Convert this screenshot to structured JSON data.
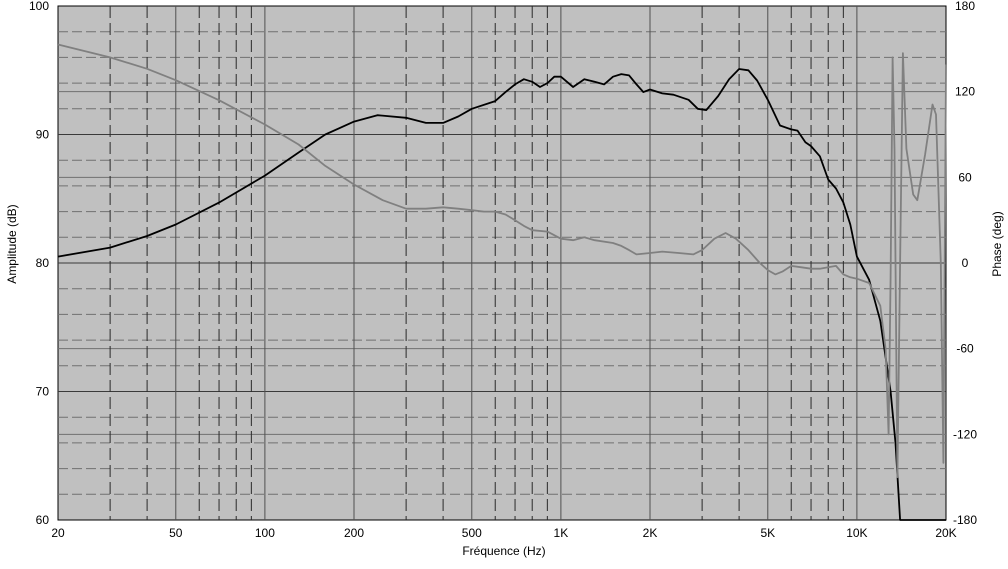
{
  "chart_data": {
    "type": "line",
    "title": "",
    "xlabel": "Fréquence (Hz)",
    "ylabel": "Amplitude (dB)",
    "y2label": "Phase (deg)",
    "x_scale": "log",
    "xlim": [
      20,
      20000
    ],
    "ylim": [
      60,
      100
    ],
    "y2lim": [
      -180,
      180
    ],
    "grid": true,
    "x_ticks": [
      {
        "value": 20,
        "label": "20"
      },
      {
        "value": 50,
        "label": "50"
      },
      {
        "value": 100,
        "label": "100"
      },
      {
        "value": 200,
        "label": "200"
      },
      {
        "value": 500,
        "label": "500"
      },
      {
        "value": 1000,
        "label": "1K"
      },
      {
        "value": 2000,
        "label": "2K"
      },
      {
        "value": 5000,
        "label": "5K"
      },
      {
        "value": 10000,
        "label": "10K"
      },
      {
        "value": 20000,
        "label": "20K"
      }
    ],
    "y_ticks": [
      {
        "value": 60,
        "label": "60"
      },
      {
        "value": 70,
        "label": "70"
      },
      {
        "value": 80,
        "label": "80"
      },
      {
        "value": 90,
        "label": "90"
      },
      {
        "value": 100,
        "label": "100"
      }
    ],
    "y2_ticks": [
      {
        "value": -180,
        "label": "-180"
      },
      {
        "value": -120,
        "label": "-120"
      },
      {
        "value": -60,
        "label": "-60"
      },
      {
        "value": 0,
        "label": "0"
      },
      {
        "value": 60,
        "label": "60"
      },
      {
        "value": 120,
        "label": "120"
      },
      {
        "value": 180,
        "label": "180"
      }
    ],
    "colors": {
      "background": "#c0c0c0",
      "amplitude": "#000000",
      "phase": "#808080"
    },
    "series": [
      {
        "axis": "left",
        "points": [
          [
            20,
            80.5
          ],
          [
            30,
            81.2
          ],
          [
            40,
            82.1
          ],
          [
            50,
            83.0
          ],
          [
            70,
            84.7
          ],
          [
            100,
            86.8
          ],
          [
            130,
            88.6
          ],
          [
            160,
            90.0
          ],
          [
            200,
            91.0
          ],
          [
            240,
            91.5
          ],
          [
            300,
            91.3
          ],
          [
            350,
            90.9
          ],
          [
            400,
            90.9
          ],
          [
            450,
            91.4
          ],
          [
            500,
            92.0
          ],
          [
            600,
            92.6
          ],
          [
            650,
            93.3
          ],
          [
            700,
            93.9
          ],
          [
            750,
            94.3
          ],
          [
            800,
            94.1
          ],
          [
            850,
            93.7
          ],
          [
            900,
            94.0
          ],
          [
            950,
            94.5
          ],
          [
            1000,
            94.5
          ],
          [
            1100,
            93.7
          ],
          [
            1200,
            94.3
          ],
          [
            1300,
            94.1
          ],
          [
            1400,
            93.9
          ],
          [
            1500,
            94.5
          ],
          [
            1600,
            94.7
          ],
          [
            1700,
            94.6
          ],
          [
            1800,
            93.9
          ],
          [
            1900,
            93.3
          ],
          [
            2000,
            93.5
          ],
          [
            2200,
            93.2
          ],
          [
            2400,
            93.1
          ],
          [
            2700,
            92.7
          ],
          [
            2900,
            92.0
          ],
          [
            3100,
            91.9
          ],
          [
            3400,
            93.0
          ],
          [
            3700,
            94.3
          ],
          [
            4000,
            95.1
          ],
          [
            4300,
            95.0
          ],
          [
            4600,
            94.2
          ],
          [
            5000,
            92.7
          ],
          [
            5500,
            90.7
          ],
          [
            6000,
            90.4
          ],
          [
            6300,
            90.3
          ],
          [
            6700,
            89.4
          ],
          [
            7000,
            89.1
          ],
          [
            7500,
            88.3
          ],
          [
            8000,
            86.5
          ],
          [
            8500,
            85.8
          ],
          [
            9000,
            84.7
          ],
          [
            9500,
            83.0
          ],
          [
            10000,
            80.5
          ],
          [
            11000,
            78.7
          ],
          [
            12000,
            75.5
          ],
          [
            13000,
            70.0
          ],
          [
            13500,
            66.0
          ],
          [
            14000,
            60.0
          ],
          [
            20000,
            60.0
          ]
        ]
      },
      {
        "axis": "right",
        "points": [
          [
            20,
            153
          ],
          [
            30,
            144
          ],
          [
            40,
            136
          ],
          [
            50,
            128
          ],
          [
            70,
            114
          ],
          [
            100,
            97
          ],
          [
            130,
            83
          ],
          [
            160,
            68
          ],
          [
            200,
            55
          ],
          [
            250,
            44
          ],
          [
            300,
            38
          ],
          [
            350,
            38
          ],
          [
            400,
            39
          ],
          [
            450,
            38
          ],
          [
            500,
            37
          ],
          [
            550,
            36
          ],
          [
            600,
            36
          ],
          [
            650,
            34
          ],
          [
            700,
            30
          ],
          [
            750,
            26
          ],
          [
            800,
            23
          ],
          [
            900,
            22
          ],
          [
            1000,
            17
          ],
          [
            1100,
            16
          ],
          [
            1200,
            18
          ],
          [
            1300,
            16
          ],
          [
            1500,
            14
          ],
          [
            1600,
            12
          ],
          [
            1700,
            9
          ],
          [
            1800,
            6
          ],
          [
            2000,
            7
          ],
          [
            2200,
            8
          ],
          [
            2500,
            7
          ],
          [
            2800,
            6
          ],
          [
            3000,
            9
          ],
          [
            3300,
            17
          ],
          [
            3600,
            21
          ],
          [
            3900,
            17
          ],
          [
            4300,
            9
          ],
          [
            4700,
            0
          ],
          [
            5000,
            -5
          ],
          [
            5300,
            -8
          ],
          [
            5600,
            -6
          ],
          [
            6000,
            -2
          ],
          [
            6500,
            -3
          ],
          [
            7000,
            -4
          ],
          [
            7500,
            -4
          ],
          [
            8000,
            -3
          ],
          [
            8500,
            -2
          ],
          [
            9000,
            -8
          ],
          [
            9500,
            -10
          ],
          [
            10000,
            -11
          ],
          [
            11000,
            -14
          ],
          [
            12000,
            -30
          ],
          [
            12500,
            -60
          ],
          [
            12800,
            -120
          ],
          [
            13000,
            -10
          ],
          [
            13200,
            144
          ],
          [
            13400,
            80
          ],
          [
            13700,
            -150
          ],
          [
            14000,
            0
          ],
          [
            14300,
            147
          ],
          [
            14700,
            80
          ],
          [
            15500,
            48
          ],
          [
            16000,
            44
          ],
          [
            17000,
            76
          ],
          [
            18000,
            111
          ],
          [
            18500,
            104
          ],
          [
            19200,
            0
          ],
          [
            19600,
            -140
          ],
          [
            20000,
            139
          ]
        ]
      }
    ]
  }
}
